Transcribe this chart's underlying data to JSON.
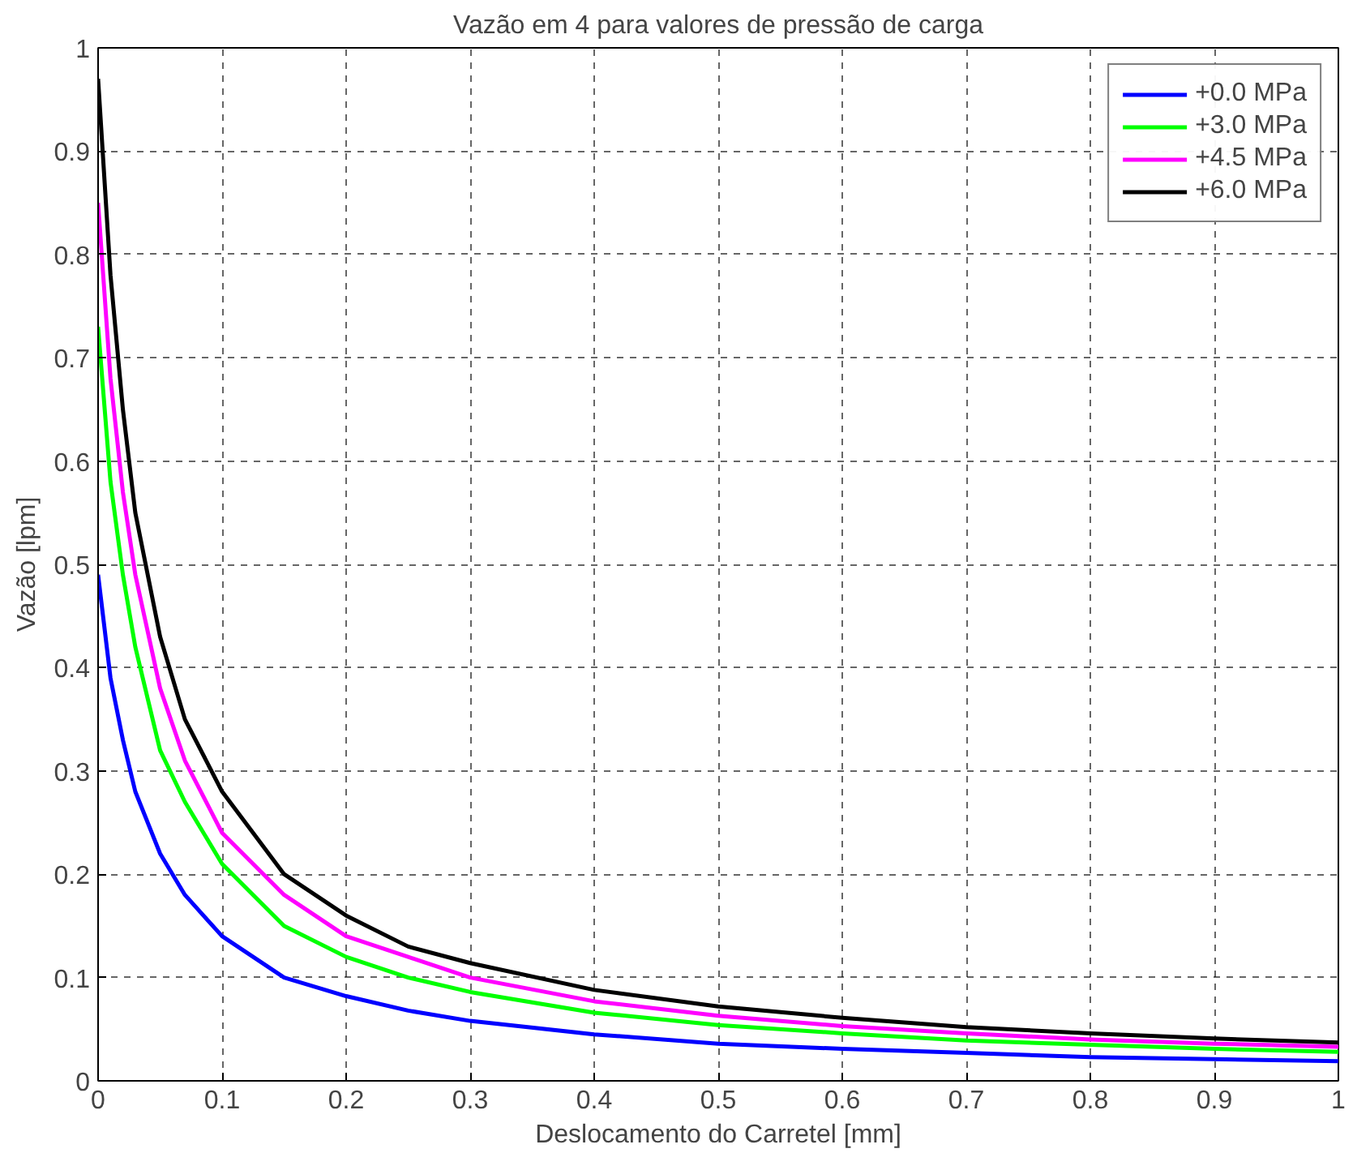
{
  "chart_data": {
    "type": "line",
    "title": "Vazão em 4 para valores de pressão de carga",
    "xlabel": "Deslocamento do Carretel [mm]",
    "ylabel": "Vazão [lpm]",
    "x": [
      0,
      0.01,
      0.02,
      0.03,
      0.05,
      0.07,
      0.1,
      0.15,
      0.2,
      0.25,
      0.3,
      0.4,
      0.5,
      0.6,
      0.7,
      0.8,
      0.9,
      1.0
    ],
    "series": [
      {
        "name": "+0.0 MPa",
        "color": "#0000ff",
        "values": [
          0.49,
          0.39,
          0.33,
          0.28,
          0.22,
          0.18,
          0.14,
          0.1,
          0.082,
          0.068,
          0.058,
          0.045,
          0.036,
          0.031,
          0.027,
          0.023,
          0.021,
          0.019
        ]
      },
      {
        "name": "+3.0 MPa",
        "color": "#00ff00",
        "values": [
          0.73,
          0.58,
          0.49,
          0.42,
          0.32,
          0.27,
          0.21,
          0.15,
          0.12,
          0.1,
          0.086,
          0.066,
          0.054,
          0.046,
          0.039,
          0.035,
          0.031,
          0.028
        ]
      },
      {
        "name": "+4.5 MPa",
        "color": "#ff00ff",
        "values": [
          0.85,
          0.68,
          0.57,
          0.49,
          0.38,
          0.31,
          0.24,
          0.18,
          0.14,
          0.12,
          0.1,
          0.077,
          0.063,
          0.053,
          0.046,
          0.04,
          0.036,
          0.033
        ]
      },
      {
        "name": "+6.0 MPa",
        "color": "#000000",
        "values": [
          0.97,
          0.78,
          0.65,
          0.55,
          0.43,
          0.35,
          0.28,
          0.2,
          0.16,
          0.13,
          0.114,
          0.088,
          0.072,
          0.061,
          0.052,
          0.046,
          0.041,
          0.037
        ]
      }
    ],
    "xlim": [
      0,
      1
    ],
    "ylim": [
      0,
      1
    ],
    "xticks": [
      0,
      0.1,
      0.2,
      0.3,
      0.4,
      0.5,
      0.6,
      0.7,
      0.8,
      0.9,
      1
    ],
    "yticks": [
      0,
      0.1,
      0.2,
      0.3,
      0.4,
      0.5,
      0.6,
      0.7,
      0.8,
      0.9,
      1
    ],
    "grid": true,
    "legend": "top right",
    "line_style": "solid",
    "marker": "none"
  }
}
